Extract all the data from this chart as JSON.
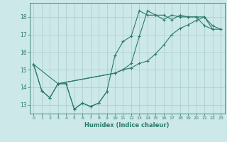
{
  "title": "",
  "xlabel": "Humidex (Indice chaleur)",
  "ylabel": "",
  "bg_color": "#cce8e8",
  "line_color": "#2a7a6a",
  "grid_color": "#aacccc",
  "xlim": [
    -0.5,
    23.5
  ],
  "ylim": [
    12.5,
    18.8
  ],
  "yticks": [
    13,
    14,
    15,
    16,
    17,
    18
  ],
  "xticks": [
    0,
    1,
    2,
    3,
    4,
    5,
    6,
    7,
    8,
    9,
    10,
    11,
    12,
    13,
    14,
    15,
    16,
    17,
    18,
    19,
    20,
    21,
    22,
    23
  ],
  "line1_x": [
    0,
    1,
    2,
    3,
    4,
    5,
    6,
    7,
    8,
    9
  ],
  "line1_y": [
    15.3,
    13.8,
    13.4,
    14.2,
    14.2,
    12.75,
    13.1,
    12.9,
    13.1,
    13.75
  ],
  "line2_x": [
    0,
    1,
    2,
    3,
    4,
    5,
    6,
    7,
    8,
    9,
    10,
    11,
    12,
    13,
    14,
    15,
    16,
    17,
    18,
    19,
    20,
    21,
    22
  ],
  "line2_y": [
    15.3,
    13.8,
    13.4,
    14.2,
    14.2,
    12.75,
    13.1,
    12.9,
    13.1,
    13.75,
    15.8,
    16.6,
    16.9,
    18.35,
    18.1,
    18.1,
    17.85,
    18.1,
    18.0,
    18.0,
    18.0,
    17.5,
    17.3
  ],
  "line3_x": [
    0,
    3,
    10,
    11,
    12,
    13,
    14,
    15,
    16,
    17,
    18,
    19,
    20,
    21,
    22,
    23
  ],
  "line3_y": [
    15.3,
    14.2,
    14.8,
    15.0,
    15.1,
    15.35,
    15.5,
    15.9,
    16.4,
    17.0,
    17.35,
    17.55,
    17.8,
    18.0,
    17.3,
    17.3
  ],
  "line4_x": [
    3,
    10,
    11,
    12,
    13,
    14,
    15,
    16,
    17,
    18,
    19,
    20,
    21,
    22,
    23
  ],
  "line4_y": [
    14.2,
    14.8,
    15.0,
    15.35,
    16.9,
    18.35,
    18.1,
    18.1,
    17.85,
    18.1,
    18.0,
    18.0,
    18.0,
    17.5,
    17.3
  ]
}
